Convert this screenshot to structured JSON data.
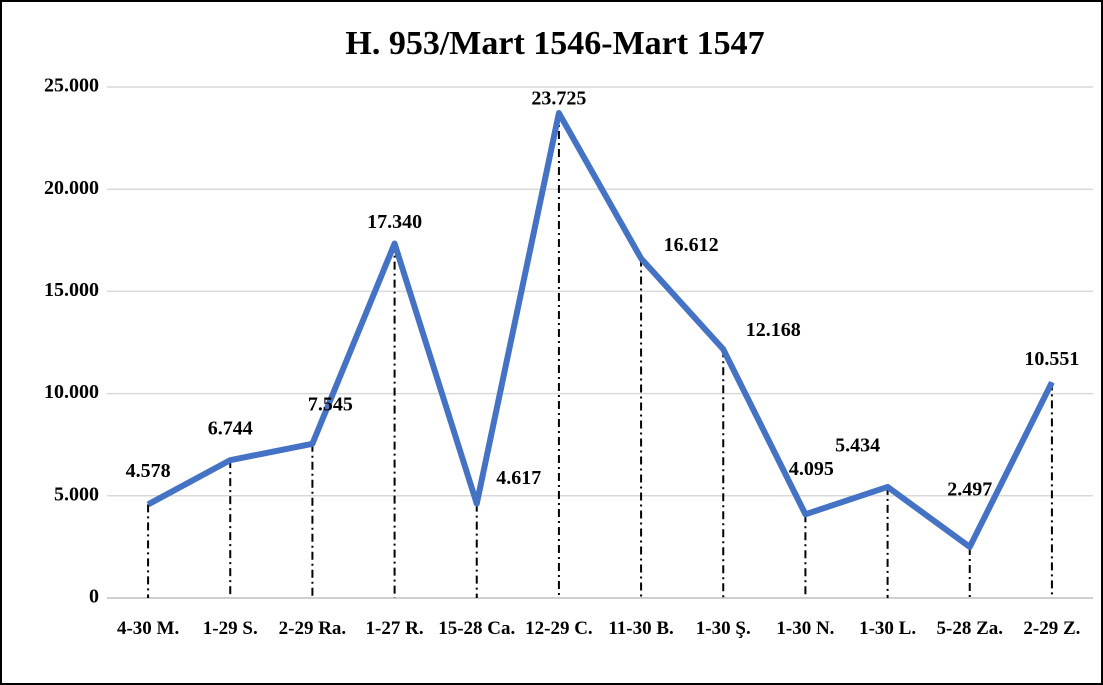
{
  "chart_data": {
    "type": "line",
    "title": "H. 953/Mart 1546-Mart 1547",
    "categories": [
      "4-30 M.",
      "1-29 S.",
      "2-29 Ra.",
      "1-27 R.",
      "15-28 Ca.",
      "12-29 C.",
      "11-30 B.",
      "1-30 Ş.",
      "1-30 N.",
      "1-30 L.",
      "5-28 Za.",
      "2-29 Z."
    ],
    "series": [
      {
        "color": "#4472c4",
        "values": [
          4578,
          6744,
          7545,
          17340,
          4617,
          23725,
          16612,
          12168,
          4095,
          5434,
          2497,
          10551
        ],
        "value_labels": [
          "4.578",
          "6.744",
          "7.545",
          "17.340",
          "4.617",
          "23.725",
          "16.612",
          "12.168",
          "4.095",
          "5.434",
          "2.497",
          "10.551"
        ]
      }
    ],
    "ylim": [
      0,
      25000
    ],
    "yticks": [
      0,
      {
        "value": 5000,
        "label": "5.000"
      },
      {
        "value": 10000,
        "label": "10.000"
      },
      {
        "value": 15000,
        "label": "15.000"
      },
      {
        "value": 20000,
        "label": "20.000"
      },
      {
        "value": 25000,
        "label": "25.000"
      }
    ],
    "grid": true
  }
}
